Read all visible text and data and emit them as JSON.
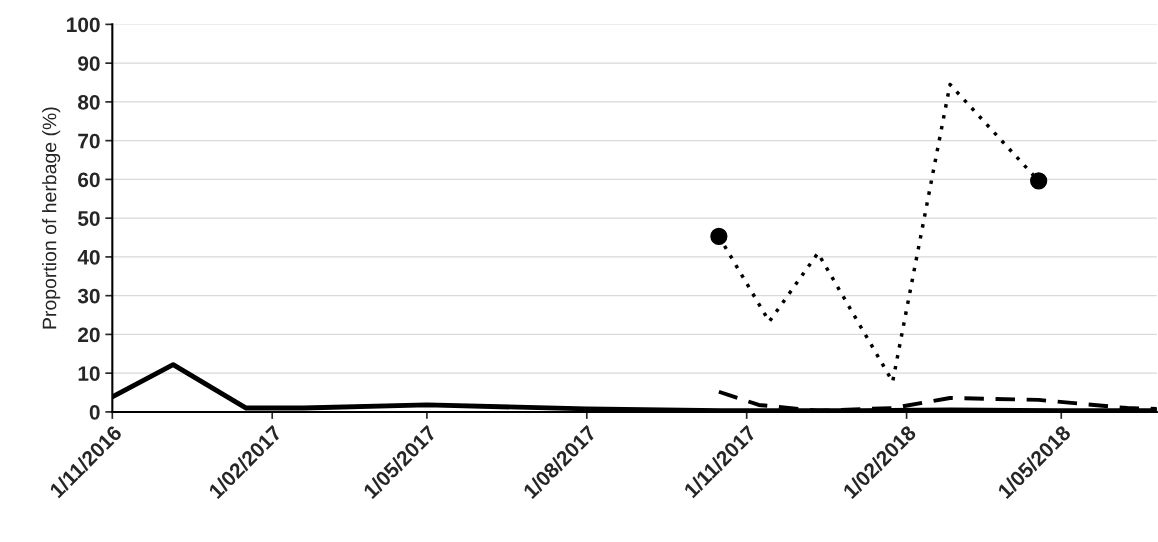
{
  "chart_data": {
    "type": "line",
    "ylabel": "Proportion of herbage (%)",
    "xlim": [
      "2016-11-01",
      "2018-06-25"
    ],
    "xticks": [
      {
        "value": "2016-11-01",
        "label": "1/11/2016"
      },
      {
        "value": "2017-02-01",
        "label": "1/02/2017"
      },
      {
        "value": "2017-05-01",
        "label": "1/05/2017"
      },
      {
        "value": "2017-08-01",
        "label": "1/08/2017"
      },
      {
        "value": "2017-11-01",
        "label": "1/11/2017"
      },
      {
        "value": "2018-02-01",
        "label": "1/02/2018"
      },
      {
        "value": "2018-05-01",
        "label": "1/05/2018"
      }
    ],
    "ylim": [
      0,
      100
    ],
    "yticks": [
      0,
      10,
      20,
      30,
      40,
      50,
      60,
      70,
      80,
      90,
      100
    ],
    "grid": "y",
    "series": [
      {
        "color": "#000000",
        "line_style": "solid",
        "x": [
          "2016-11-01",
          "2016-12-06",
          "2017-01-17",
          "2017-02-19",
          "2017-05-01",
          "2017-08-01",
          "2017-10-17",
          "2017-11-25",
          "2018-01-05",
          "2018-02-27",
          "2018-04-30",
          "2018-06-25"
        ],
        "values": [
          3.9,
          12.2,
          1.0,
          1.0,
          1.8,
          0.8,
          0.3,
          0.3,
          0.3,
          0.5,
          0.3,
          0.3
        ]
      },
      {
        "color": "#000000",
        "line_style": "dotted",
        "x": [
          "2017-10-16",
          "2017-11-14",
          "2017-12-12",
          "2018-01-24",
          "2018-02-26",
          "2018-04-18"
        ],
        "values": [
          45.3,
          23.3,
          41,
          7.8,
          84.5,
          59.6
        ]
      },
      {
        "color": "#000000",
        "line_style": "dashed",
        "x": [
          "2017-10-16",
          "2017-11-08",
          "2017-12-12",
          "2018-01-24",
          "2018-02-26",
          "2018-04-18",
          "2018-06-08",
          "2018-06-25"
        ],
        "values": [
          5.2,
          1.8,
          0.3,
          1.0,
          3.6,
          3.1,
          1.0,
          0.8
        ]
      },
      {
        "type": "scatter",
        "marker": "circle",
        "color": "#000000",
        "x": [
          "2017-10-16",
          "2018-04-18"
        ],
        "values": [
          45.3,
          59.6
        ]
      }
    ]
  }
}
